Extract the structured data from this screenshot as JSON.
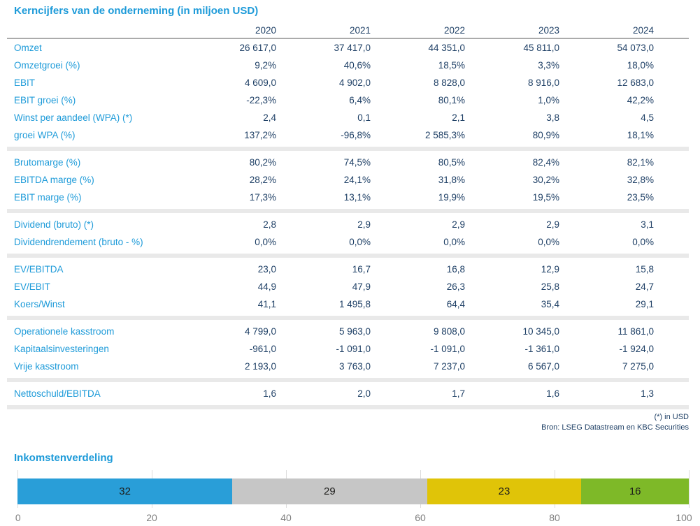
{
  "page": {
    "title": "Kerncijfers van de onderneming (in miljoen USD)",
    "footnote": "(*) in USD",
    "source": "Bron: LSEG Datastream en KBC Securities"
  },
  "table": {
    "years": [
      "2020",
      "2021",
      "2022",
      "2023",
      "2024"
    ],
    "sections": [
      {
        "rows": [
          {
            "label": "Omzet",
            "values": [
              "26 617,0",
              "37 417,0",
              "44 351,0",
              "45 811,0",
              "54 073,0"
            ]
          },
          {
            "label": "Omzetgroei (%)",
            "values": [
              "9,2%",
              "40,6%",
              "18,5%",
              "3,3%",
              "18,0%"
            ]
          },
          {
            "label": "EBIT",
            "values": [
              "4 609,0",
              "4 902,0",
              "8 828,0",
              "8 916,0",
              "12 683,0"
            ]
          },
          {
            "label": "EBIT groei (%)",
            "values": [
              "-22,3%",
              "6,4%",
              "80,1%",
              "1,0%",
              "42,2%"
            ]
          },
          {
            "label": "Winst per aandeel (WPA) (*)",
            "values": [
              "2,4",
              "0,1",
              "2,1",
              "3,8",
              "4,5"
            ]
          },
          {
            "label": "groei WPA (%)",
            "values": [
              "137,2%",
              "-96,8%",
              "2 585,3%",
              "80,9%",
              "18,1%"
            ]
          }
        ]
      },
      {
        "rows": [
          {
            "label": "Brutomarge (%)",
            "values": [
              "80,2%",
              "74,5%",
              "80,5%",
              "82,4%",
              "82,1%"
            ]
          },
          {
            "label": "EBITDA marge (%)",
            "values": [
              "28,2%",
              "24,1%",
              "31,8%",
              "30,2%",
              "32,8%"
            ]
          },
          {
            "label": "EBIT marge (%)",
            "values": [
              "17,3%",
              "13,1%",
              "19,9%",
              "19,5%",
              "23,5%"
            ]
          }
        ]
      },
      {
        "rows": [
          {
            "label": "Dividend (bruto) (*)",
            "values": [
              "2,8",
              "2,9",
              "2,9",
              "2,9",
              "3,1"
            ]
          },
          {
            "label": "Dividendrendement (bruto - %)",
            "values": [
              "0,0%",
              "0,0%",
              "0,0%",
              "0,0%",
              "0,0%"
            ]
          }
        ]
      },
      {
        "rows": [
          {
            "label": "EV/EBITDA",
            "values": [
              "23,0",
              "16,7",
              "16,8",
              "12,9",
              "15,8"
            ]
          },
          {
            "label": "EV/EBIT",
            "values": [
              "44,9",
              "47,9",
              "26,3",
              "25,8",
              "24,7"
            ]
          },
          {
            "label": "Koers/Winst",
            "values": [
              "41,1",
              "1 495,8",
              "64,4",
              "35,4",
              "29,1"
            ]
          }
        ]
      },
      {
        "rows": [
          {
            "label": "Operationele kasstroom",
            "values": [
              "4 799,0",
              "5 963,0",
              "9 808,0",
              "10 345,0",
              "11 861,0"
            ]
          },
          {
            "label": "Kapitaalsinvesteringen",
            "values": [
              "-961,0",
              "-1 091,0",
              "-1 091,0",
              "-1 361,0",
              "-1 924,0"
            ]
          },
          {
            "label": "Vrije kasstroom",
            "values": [
              "2 193,0",
              "3 763,0",
              "7 237,0",
              "6 567,0",
              "7 275,0"
            ]
          }
        ]
      },
      {
        "rows": [
          {
            "label": "Nettoschuld/EBITDA",
            "values": [
              "1,6",
              "2,0",
              "1,7",
              "1,6",
              "1,3"
            ]
          }
        ]
      }
    ]
  },
  "chart_data": {
    "type": "bar",
    "subtype": "horizontal-stacked",
    "title": "Inkomstenverdeling",
    "segments": [
      {
        "label": "32",
        "value": 32,
        "color": "#299ED8"
      },
      {
        "label": "29",
        "value": 29,
        "color": "#C6C6C6"
      },
      {
        "label": "23",
        "value": 23,
        "color": "#E0C408"
      },
      {
        "label": "16",
        "value": 16,
        "color": "#7EB928"
      }
    ],
    "xlim": [
      0,
      100
    ],
    "xticks": [
      "0",
      "20",
      "40",
      "60",
      "80",
      "100"
    ],
    "grid": true,
    "legend": "none"
  },
  "colors": {
    "accent_blue": "#1E9BD9",
    "value_navy": "#1F4066",
    "band_gray": "#E9E9E9",
    "gridline_gray": "#DCDCDC",
    "axis_label_gray": "#7F7F7F",
    "header_rule_gray": "#ABABAB"
  }
}
